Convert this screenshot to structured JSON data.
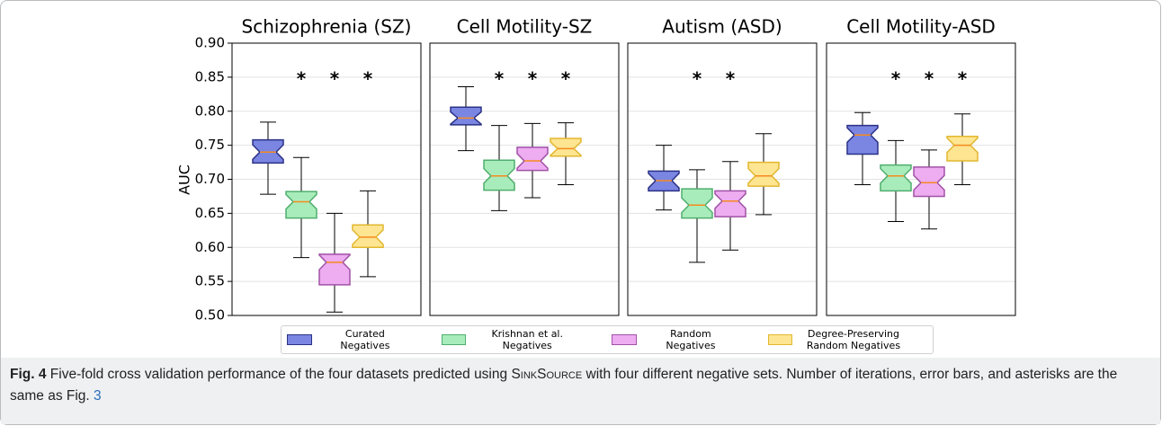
{
  "chart_data": {
    "type": "box",
    "ylabel": "AUC",
    "ylim": [
      0.5,
      0.9
    ],
    "yticks": [
      {
        "value": 0.5,
        "label": "0.50"
      },
      {
        "value": 0.55,
        "label": "0.55"
      },
      {
        "value": 0.6,
        "label": "0.60"
      },
      {
        "value": 0.65,
        "label": "0.65"
      },
      {
        "value": 0.7,
        "label": "0.70"
      },
      {
        "value": 0.75,
        "label": "0.75"
      },
      {
        "value": 0.8,
        "label": "0.80"
      },
      {
        "value": 0.85,
        "label": "0.85"
      },
      {
        "value": 0.9,
        "label": "0.90"
      }
    ],
    "grid": true,
    "median_color": "#f58a1f",
    "star_y": 0.85,
    "series": [
      {
        "name": "Curated Negatives",
        "color": "#7b86e3",
        "edge": "#2b3285"
      },
      {
        "name": "Krishnan et al. Negatives",
        "color": "#a9ecbb",
        "edge": "#4fae6e"
      },
      {
        "name": "Random Negatives",
        "color": "#eeacf1",
        "edge": "#a052a6"
      },
      {
        "name": "Degree-Preserving Random Negatives",
        "color": "#fde592",
        "edge": "#e2b72f"
      }
    ],
    "panels": [
      {
        "title": "Schizophrenia (SZ)",
        "stars": [
          null,
          "*",
          "*",
          "*"
        ],
        "boxes": [
          {
            "whislo": 0.678,
            "q1": 0.724,
            "med": 0.74,
            "q3": 0.758,
            "whishi": 0.784
          },
          {
            "whislo": 0.585,
            "q1": 0.643,
            "med": 0.667,
            "q3": 0.682,
            "whishi": 0.732
          },
          {
            "whislo": 0.505,
            "q1": 0.545,
            "med": 0.578,
            "q3": 0.59,
            "whishi": 0.65
          },
          {
            "whislo": 0.557,
            "q1": 0.6,
            "med": 0.615,
            "q3": 0.633,
            "whishi": 0.683
          }
        ]
      },
      {
        "title": "Cell Motility-SZ",
        "stars": [
          null,
          "*",
          "*",
          "*"
        ],
        "boxes": [
          {
            "whislo": 0.742,
            "q1": 0.78,
            "med": 0.79,
            "q3": 0.806,
            "whishi": 0.836
          },
          {
            "whislo": 0.654,
            "q1": 0.684,
            "med": 0.705,
            "q3": 0.728,
            "whishi": 0.779
          },
          {
            "whislo": 0.673,
            "q1": 0.713,
            "med": 0.727,
            "q3": 0.747,
            "whishi": 0.782
          },
          {
            "whislo": 0.692,
            "q1": 0.734,
            "med": 0.745,
            "q3": 0.76,
            "whishi": 0.783
          }
        ]
      },
      {
        "title": "Autism (ASD)",
        "stars": [
          null,
          "*",
          "*",
          null
        ],
        "boxes": [
          {
            "whislo": 0.655,
            "q1": 0.683,
            "med": 0.698,
            "q3": 0.712,
            "whishi": 0.75
          },
          {
            "whislo": 0.578,
            "q1": 0.643,
            "med": 0.662,
            "q3": 0.686,
            "whishi": 0.714
          },
          {
            "whislo": 0.596,
            "q1": 0.645,
            "med": 0.668,
            "q3": 0.683,
            "whishi": 0.726
          },
          {
            "whislo": 0.648,
            "q1": 0.69,
            "med": 0.705,
            "q3": 0.725,
            "whishi": 0.767
          }
        ]
      },
      {
        "title": "Cell Motility-ASD",
        "stars": [
          null,
          "*",
          "*",
          "*"
        ],
        "boxes": [
          {
            "whislo": 0.692,
            "q1": 0.737,
            "med": 0.765,
            "q3": 0.779,
            "whishi": 0.798
          },
          {
            "whislo": 0.638,
            "q1": 0.683,
            "med": 0.705,
            "q3": 0.721,
            "whishi": 0.757
          },
          {
            "whislo": 0.627,
            "q1": 0.675,
            "med": 0.695,
            "q3": 0.718,
            "whishi": 0.743
          },
          {
            "whislo": 0.692,
            "q1": 0.727,
            "med": 0.75,
            "q3": 0.763,
            "whishi": 0.796
          }
        ]
      }
    ]
  },
  "caption": {
    "label": "Fig. 4",
    "text_before": "Five-fold cross validation performance of the four datasets predicted using ",
    "method": "SinkSource",
    "text_after": " with four different negative sets. Number of iterations, error bars, and asterisks are the same as Fig. ",
    "ref": "3"
  }
}
